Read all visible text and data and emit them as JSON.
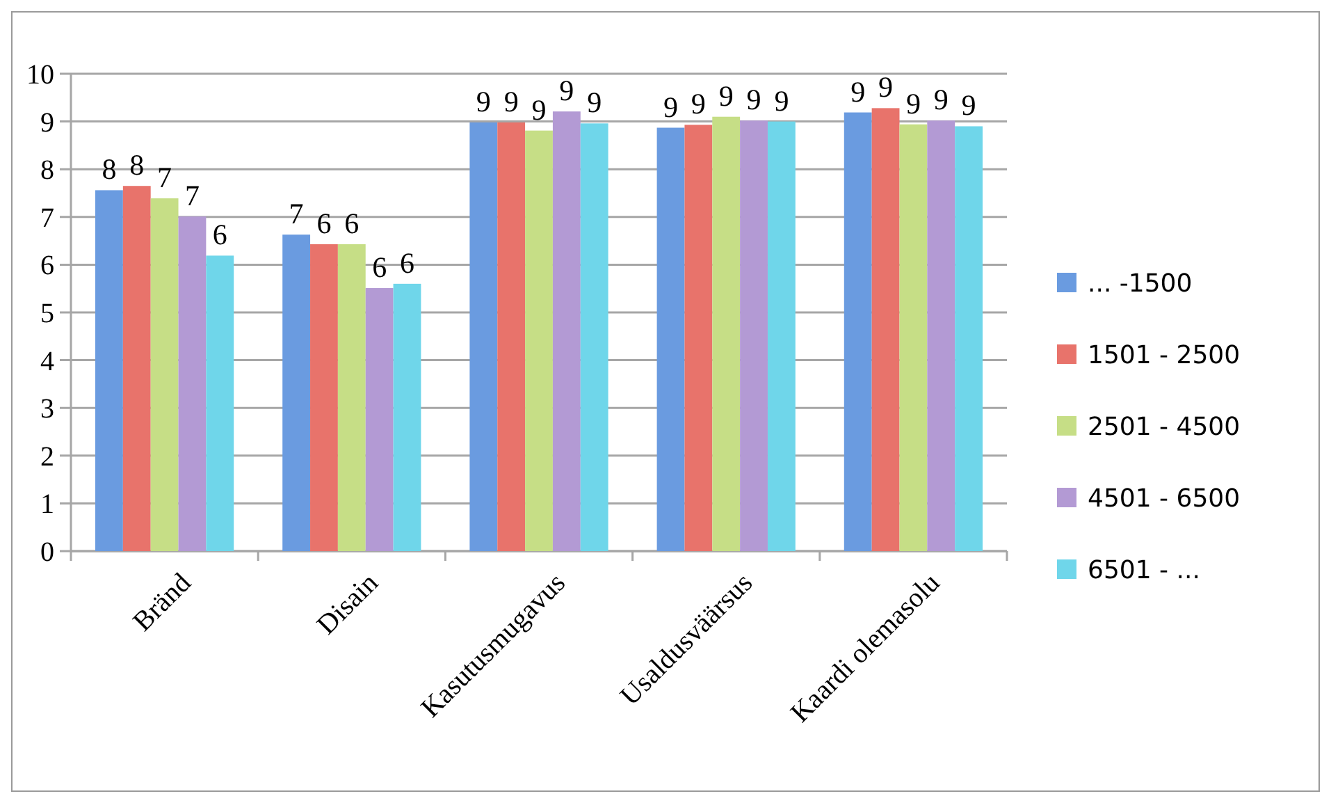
{
  "chart_data": {
    "type": "bar",
    "categories": [
      "Bränd",
      "Disain",
      "Kasutusmugavus",
      "Usaldusväärsus",
      "Kaardi olemasolu"
    ],
    "series": [
      {
        "name": "... -1500",
        "color": "#6a9be0",
        "values": [
          7.56,
          6.63,
          8.98,
          8.87,
          9.19
        ],
        "value_labels": [
          "8",
          "7",
          "9",
          "9",
          "9"
        ]
      },
      {
        "name": "1501 - 2500",
        "color": "#e8736b",
        "values": [
          7.65,
          6.43,
          8.98,
          8.93,
          9.28
        ],
        "value_labels": [
          "8",
          "6",
          "9",
          "9",
          "9"
        ]
      },
      {
        "name": "2501 - 4500",
        "color": "#c6de86",
        "values": [
          7.39,
          6.43,
          8.81,
          9.1,
          8.94
        ],
        "value_labels": [
          "7",
          "6",
          "9",
          "9",
          "9"
        ]
      },
      {
        "name": "4501 - 6500",
        "color": "#b39ad4",
        "values": [
          7.01,
          5.51,
          9.21,
          9.02,
          9.02
        ],
        "value_labels": [
          "7",
          "6",
          "9",
          "9",
          "9"
        ]
      },
      {
        "name": "6501 - ...",
        "color": "#6fd6ea",
        "values": [
          6.19,
          5.6,
          8.96,
          9.0,
          8.9
        ],
        "value_labels": [
          "6",
          "6",
          "9",
          "9",
          "9"
        ]
      }
    ],
    "ylim": [
      0,
      10
    ],
    "yticks": [
      0,
      1,
      2,
      3,
      4,
      5,
      6,
      7,
      8,
      9,
      10
    ],
    "grid": "y",
    "legend": "right"
  }
}
